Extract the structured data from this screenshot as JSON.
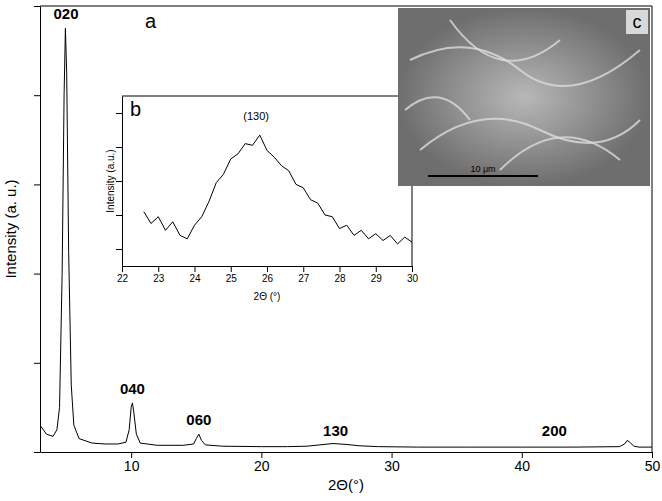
{
  "chart_data": [
    {
      "type": "line",
      "label": "a",
      "x_label": "2Θ(°)",
      "y_label": "Intensity (a. u.)",
      "x": [
        3.0,
        3.5,
        4.0,
        4.3,
        4.5,
        4.7,
        4.85,
        4.95,
        5.05,
        5.2,
        5.4,
        5.6,
        6.0,
        7.0,
        8.0,
        9.0,
        9.6,
        9.85,
        10.0,
        10.1,
        10.2,
        10.4,
        10.7,
        12.0,
        14.0,
        14.8,
        15.0,
        15.2,
        15.4,
        15.7,
        17.0,
        20.0,
        22.0,
        23.5,
        24.5,
        25.5,
        26.5,
        27.5,
        29.0,
        32.0,
        36.0,
        40.0,
        44.0,
        47.5,
        47.9,
        48.1,
        48.3,
        48.6,
        49.0,
        50.0
      ],
      "values": [
        6,
        4,
        3.5,
        5,
        10,
        40,
        80,
        95,
        85,
        45,
        15,
        6,
        3,
        2,
        1.8,
        1.8,
        2.2,
        5,
        10,
        11,
        9,
        4,
        2,
        1.5,
        1.5,
        1.8,
        3,
        4,
        2.6,
        1.6,
        1.3,
        1.2,
        1.2,
        1.3,
        1.6,
        1.9,
        1.7,
        1.4,
        1.2,
        1.1,
        1.1,
        1.1,
        1.1,
        1.2,
        1.8,
        2.6,
        2.2,
        1.3,
        1.1,
        1.1
      ],
      "color": "#000000",
      "xlim": [
        3,
        50
      ],
      "xticks": [
        10,
        20,
        30,
        40,
        50
      ],
      "ylim": [
        0,
        100
      ],
      "yticks": [
        0,
        20,
        40,
        60,
        80,
        100
      ],
      "tick_labels": "x",
      "annotations": [
        {
          "text": "020",
          "x": 5.0,
          "y": 97
        },
        {
          "text": "040",
          "x": 10.1,
          "y": 13
        },
        {
          "text": "060",
          "x": 15.2,
          "y": 6
        },
        {
          "text": "130",
          "x": 25.7,
          "y": 3.5
        },
        {
          "text": "200",
          "x": 42.5,
          "y": 3.5
        }
      ]
    },
    {
      "type": "line",
      "label": "b",
      "x_label": "2Θ (°)",
      "y_label": "Intensity (a.u.)",
      "x": [
        22.6,
        22.8,
        23.0,
        23.2,
        23.4,
        23.6,
        23.8,
        24.0,
        24.2,
        24.4,
        24.6,
        24.8,
        25.0,
        25.2,
        25.4,
        25.6,
        25.8,
        26.0,
        26.2,
        26.4,
        26.6,
        26.8,
        27.0,
        27.2,
        27.4,
        27.6,
        27.8,
        28.0,
        28.2,
        28.4,
        28.6,
        28.8,
        29.0,
        29.2,
        29.4,
        29.6,
        29.8,
        30.0
      ],
      "values": [
        4.2,
        3.5,
        3.9,
        3.1,
        3.6,
        2.8,
        2.6,
        3.4,
        3.9,
        4.8,
        5.9,
        6.4,
        7.3,
        7.6,
        8.2,
        8.1,
        8.7,
        7.8,
        7.4,
        6.9,
        6.6,
        5.8,
        5.6,
        4.9,
        4.7,
        4.0,
        3.9,
        3.2,
        3.4,
        2.8,
        3.1,
        2.6,
        2.9,
        2.5,
        2.8,
        2.3,
        2.7,
        2.4
      ],
      "color": "#000000",
      "xlim": [
        22,
        30
      ],
      "xticks": [
        22,
        23,
        24,
        25,
        26,
        27,
        28,
        29,
        30
      ],
      "ylim": [
        1,
        11
      ],
      "yticks": [
        2,
        4,
        6,
        8,
        10
      ],
      "tick_labels": "x",
      "annotations": [
        {
          "text": "(130)",
          "x": 25.7,
          "y": 9.6
        }
      ]
    },
    {
      "type": "image",
      "label": "c",
      "annotations": [
        {
          "text": "10 μm"
        }
      ]
    }
  ]
}
